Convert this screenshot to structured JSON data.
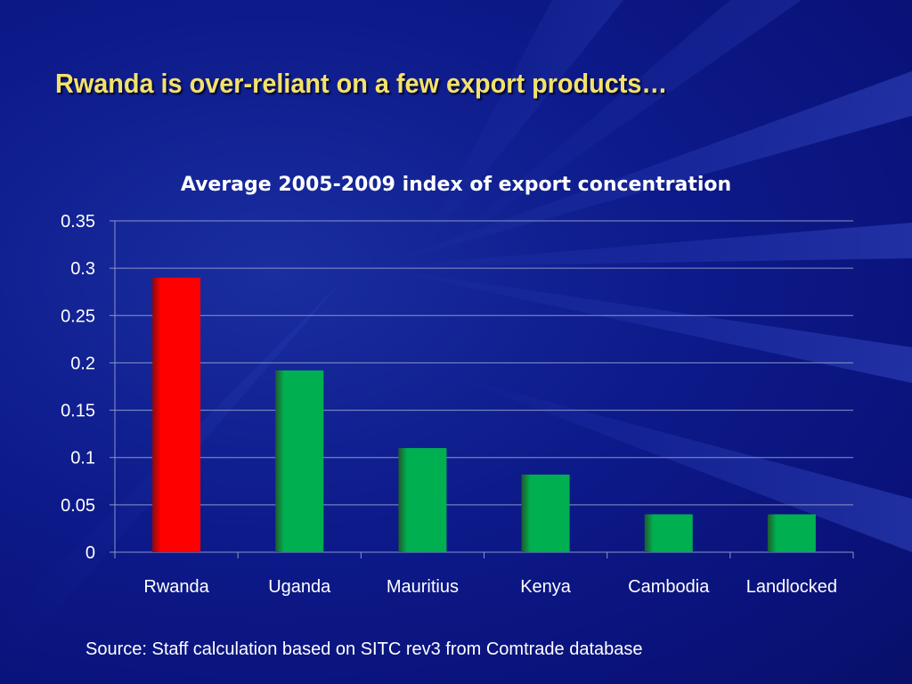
{
  "slide": {
    "title": "Rwanda is over-reliant on a few export products…",
    "source": "Source: Staff calculation based on SITC rev3 from Comtrade database"
  },
  "colors": {
    "background": "#0d1a8a",
    "title": "#f3e26a",
    "highlight_bar": "#ff0000",
    "default_bar": "#00b050"
  },
  "chart_data": {
    "type": "bar",
    "title": "Average 2005-2009 index of export concentration",
    "xlabel": "",
    "ylabel": "",
    "categories": [
      "Rwanda",
      "Uganda",
      "Mauritius",
      "Kenya",
      "Cambodia",
      "Landlocked"
    ],
    "values": [
      0.29,
      0.192,
      0.11,
      0.082,
      0.04,
      0.04
    ],
    "bar_colors": [
      "#ff0000",
      "#00b050",
      "#00b050",
      "#00b050",
      "#00b050",
      "#00b050"
    ],
    "ylim": [
      0,
      0.35
    ],
    "yticks": [
      "0",
      "0.05",
      "0.1",
      "0.15",
      "0.2",
      "0.25",
      "0.3",
      "0.35"
    ],
    "ytick_values": [
      0,
      0.05,
      0.1,
      0.15,
      0.2,
      0.25,
      0.3,
      0.35
    ],
    "grid": true,
    "legend": "none"
  }
}
